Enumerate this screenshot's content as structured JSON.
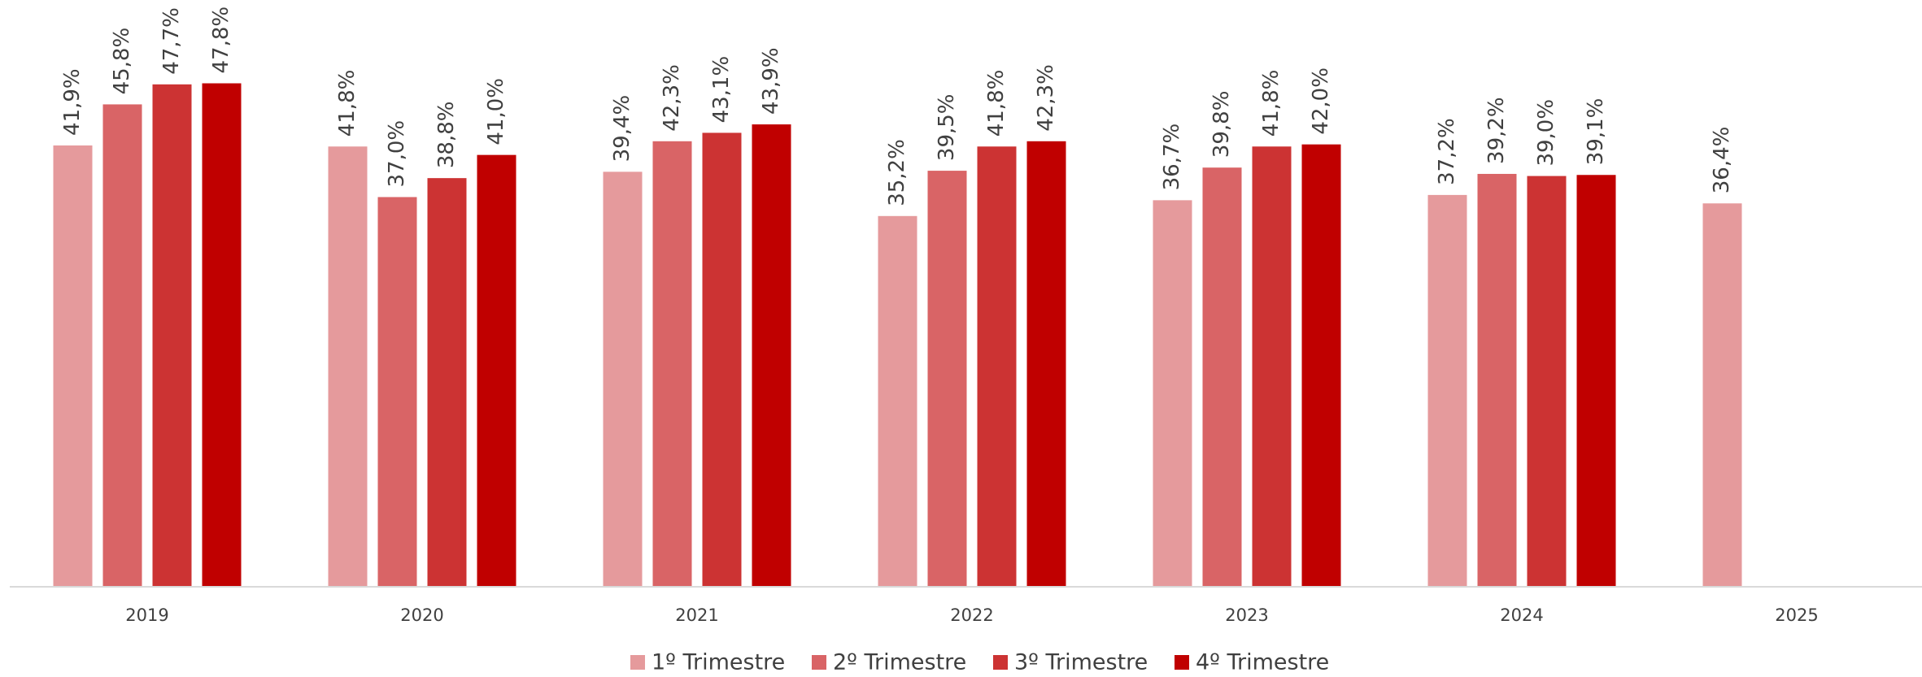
{
  "chart_data": {
    "type": "bar",
    "categories": [
      "2019",
      "2020",
      "2021",
      "2022",
      "2023",
      "2024",
      "2025"
    ],
    "series": [
      {
        "name": "1º Trimestre",
        "color": "#e59a9c",
        "values": [
          41.9,
          41.8,
          39.4,
          35.2,
          36.7,
          37.2,
          36.4
        ],
        "value_labels": [
          "41,9%",
          "41,8%",
          "39,4%",
          "35,2%",
          "36,7%",
          "37,2%",
          "36,4%"
        ]
      },
      {
        "name": "2º Trimestre",
        "color": "#d96466",
        "values": [
          45.8,
          37.0,
          42.3,
          39.5,
          39.8,
          39.2,
          null
        ],
        "value_labels": [
          "45,8%",
          "37,0%",
          "42,3%",
          "39,5%",
          "39,8%",
          "39,2%",
          null
        ]
      },
      {
        "name": "3º Trimestre",
        "color": "#cc3333",
        "values": [
          47.7,
          38.8,
          43.1,
          41.8,
          41.8,
          39.0,
          null
        ],
        "value_labels": [
          "47,7%",
          "38,8%",
          "43,1%",
          "41,8%",
          "41,8%",
          "39,0%",
          null
        ]
      },
      {
        "name": "4º Trimestre",
        "color": "#c00000",
        "values": [
          47.8,
          41.0,
          43.9,
          42.3,
          42.0,
          39.1,
          null
        ],
        "value_labels": [
          "47,8%",
          "41,0%",
          "43,9%",
          "42,3%",
          "42,0%",
          "39,1%",
          null
        ]
      }
    ],
    "ylim": [
      0,
      50
    ],
    "legend": "bottom"
  }
}
